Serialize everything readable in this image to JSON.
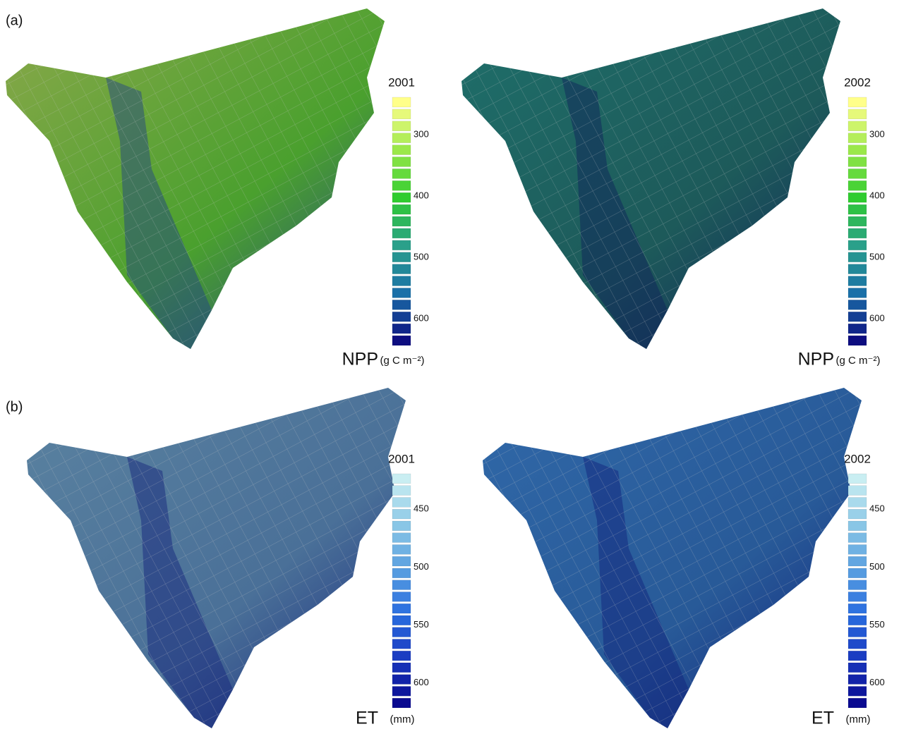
{
  "panels": [
    {
      "label": "(a)",
      "maps": [
        {
          "year": "2001",
          "ticks": [
            "300",
            "400",
            "500",
            "600"
          ],
          "variable": "NPP",
          "unit": "(g C m⁻²)"
        },
        {
          "year": "2002",
          "ticks": [
            "300",
            "400",
            "500",
            "600"
          ],
          "variable": "NPP",
          "unit": "(g C m⁻²)"
        }
      ]
    },
    {
      "label": "(b)",
      "maps": [
        {
          "year": "2001",
          "ticks": [
            "450",
            "500",
            "550",
            "600"
          ],
          "variable": "ET",
          "unit": "(mm)"
        },
        {
          "year": "2002",
          "ticks": [
            "450",
            "500",
            "550",
            "600"
          ],
          "variable": "ET",
          "unit": "(mm)"
        }
      ]
    }
  ]
}
